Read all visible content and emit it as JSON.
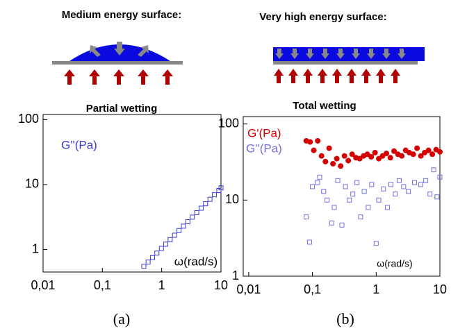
{
  "chart_data": [
    {
      "type": "scatter",
      "title": "Medium energy surface:",
      "subtitle": "Partial wetting",
      "xlabel": "ω(rad/s)",
      "caption": "(a)",
      "log_x": true,
      "log_y": true,
      "xlim": [
        0.01,
        10
      ],
      "ylim": [
        0.45,
        120
      ],
      "xticks": [
        {
          "value": 0.01,
          "label": "0,01"
        },
        {
          "value": 0.1,
          "label": "0,1"
        },
        1,
        10
      ],
      "yticks": [
        1,
        10,
        100
      ],
      "series": [
        {
          "name": "G''(Pa)",
          "color": "#3a3ad6",
          "marker": "open-square",
          "x": [
            0.5,
            0.59,
            0.7,
            0.83,
            0.99,
            1.17,
            1.39,
            1.65,
            1.96,
            2.33,
            2.76,
            3.28,
            3.9,
            4.63,
            5.49,
            6.52,
            7.75,
            9.2,
            10
          ],
          "values": [
            0.55,
            0.64,
            0.75,
            0.88,
            1.04,
            1.21,
            1.42,
            1.66,
            1.96,
            2.29,
            2.68,
            3.15,
            3.69,
            4.33,
            5.07,
            5.94,
            6.97,
            8.1,
            8.9
          ]
        }
      ]
    },
    {
      "type": "scatter",
      "title": "Very high energy surface:",
      "subtitle": "Total wetting",
      "xlabel": "ω(rad/s)",
      "caption": "(b)",
      "log_x": true,
      "log_y": true,
      "xlim": [
        0.0082,
        10
      ],
      "ylim": [
        1,
        125
      ],
      "xticks": [
        {
          "value": 0.01,
          "label": "0,01"
        },
        {
          "value": 0.1,
          "label": "0,1"
        },
        1,
        10
      ],
      "yticks": [
        1,
        10,
        100
      ],
      "series": [
        {
          "name": "G'(Pa)",
          "color": "#d40000",
          "marker": "circle",
          "x": [
            0.08,
            0.092,
            0.105,
            0.121,
            0.139,
            0.16,
            0.183,
            0.21,
            0.241,
            0.277,
            0.318,
            0.365,
            0.419,
            0.481,
            0.552,
            0.634,
            0.728,
            0.836,
            0.959,
            1.1,
            1.26,
            1.45,
            1.67,
            1.91,
            2.2,
            2.52,
            2.9,
            3.32,
            3.82,
            4.38,
            5.03,
            5.77,
            6.63,
            7.61,
            8.73,
            10
          ],
          "values": [
            60,
            58,
            45,
            60,
            38,
            32,
            48,
            30,
            35,
            28,
            38,
            33,
            40,
            36,
            35,
            38,
            40,
            37,
            42,
            35,
            38,
            41,
            36,
            44,
            40,
            38,
            45,
            42,
            40,
            48,
            38,
            42,
            45,
            40,
            46,
            43
          ]
        },
        {
          "name": "G''(Pa)",
          "color": "#6f6fe0",
          "marker": "open-square",
          "x": [
            0.08,
            0.09,
            0.1,
            0.12,
            0.13,
            0.15,
            0.17,
            0.2,
            0.22,
            0.25,
            0.29,
            0.33,
            0.38,
            0.43,
            0.5,
            0.57,
            0.65,
            0.75,
            0.85,
            1,
            1.1,
            1.3,
            1.5,
            1.7,
            2,
            2.3,
            2.7,
            3.2,
            4,
            5,
            6,
            7,
            8,
            9,
            10
          ],
          "values": [
            6,
            2.8,
            15,
            17,
            20,
            13,
            10,
            5,
            8,
            18,
            4.7,
            15,
            10,
            12,
            17,
            6,
            13,
            8,
            16,
            2.7,
            10,
            14,
            8,
            16,
            12,
            18,
            15,
            13,
            17,
            16,
            18,
            12,
            25,
            11,
            20
          ]
        }
      ]
    }
  ]
}
